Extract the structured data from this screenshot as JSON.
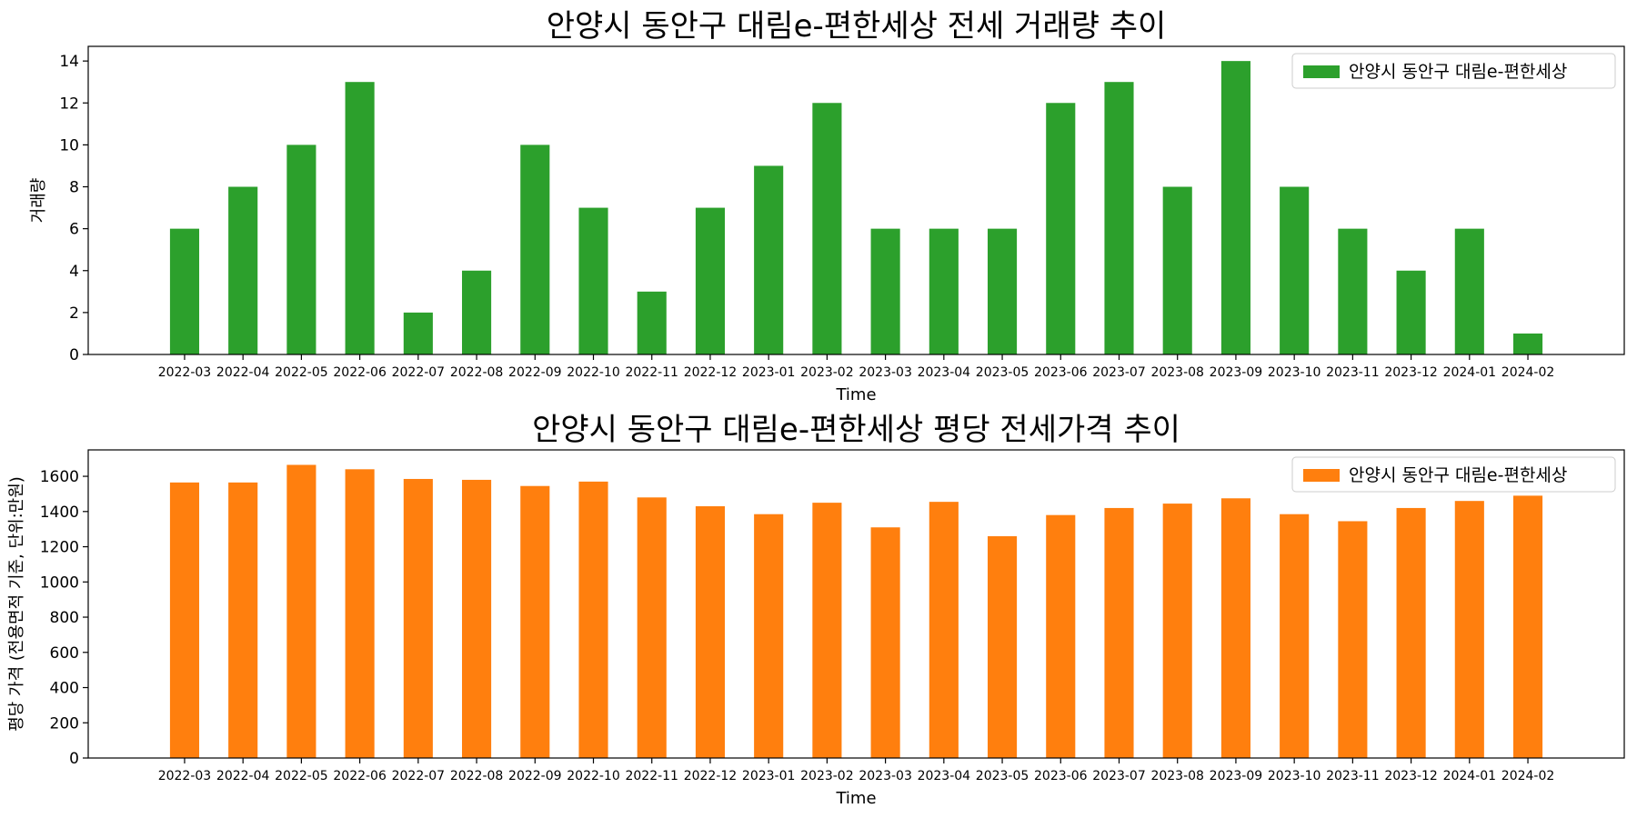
{
  "chart_data": [
    {
      "type": "bar",
      "title": "안양시 동안구 대림e-편한세상 전세 거래량 추이",
      "xlabel": "Time",
      "ylabel": "거래량",
      "ylim": [
        0,
        14.7
      ],
      "yticks": [
        0,
        2,
        4,
        6,
        8,
        10,
        12,
        14
      ],
      "categories": [
        "2022-03",
        "2022-04",
        "2022-05",
        "2022-06",
        "2022-07",
        "2022-08",
        "2022-09",
        "2022-10",
        "2022-11",
        "2022-12",
        "2023-01",
        "2023-02",
        "2023-03",
        "2023-04",
        "2023-05",
        "2023-06",
        "2023-07",
        "2023-08",
        "2023-09",
        "2023-10",
        "2023-11",
        "2023-12",
        "2024-01",
        "2024-02"
      ],
      "series": [
        {
          "name": "안양시 동안구 대림e-편한세상",
          "color": "#2ca02c",
          "values": [
            6,
            8,
            10,
            13,
            2,
            4,
            10,
            7,
            3,
            7,
            9,
            12,
            6,
            6,
            6,
            12,
            13,
            8,
            14,
            8,
            6,
            4,
            6,
            1
          ]
        }
      ],
      "legend": "top-right",
      "grid": false
    },
    {
      "type": "bar",
      "title": "안양시 동안구 대림e-편한세상 평당 전세가격 추이",
      "xlabel": "Time",
      "ylabel": "평당 가격 (전용면적 기준, 단위:만원)",
      "ylim": [
        0,
        1750
      ],
      "yticks": [
        0,
        200,
        400,
        600,
        800,
        1000,
        1200,
        1400,
        1600
      ],
      "categories": [
        "2022-03",
        "2022-04",
        "2022-05",
        "2022-06",
        "2022-07",
        "2022-08",
        "2022-09",
        "2022-10",
        "2022-11",
        "2022-12",
        "2023-01",
        "2023-02",
        "2023-03",
        "2023-04",
        "2023-05",
        "2023-06",
        "2023-07",
        "2023-08",
        "2023-09",
        "2023-10",
        "2023-11",
        "2023-12",
        "2024-01",
        "2024-02"
      ],
      "series": [
        {
          "name": "안양시 동안구 대림e-편한세상",
          "color": "#ff7f0e",
          "values": [
            1565,
            1565,
            1665,
            1640,
            1585,
            1580,
            1545,
            1570,
            1480,
            1430,
            1385,
            1450,
            1310,
            1455,
            1260,
            1380,
            1420,
            1445,
            1475,
            1385,
            1345,
            1420,
            1460,
            1490
          ]
        }
      ],
      "legend": "top-right",
      "grid": false
    }
  ]
}
